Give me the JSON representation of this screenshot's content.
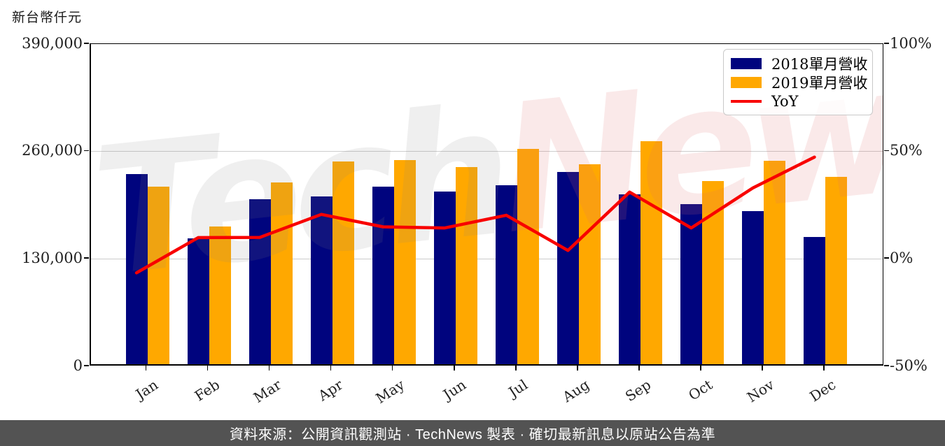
{
  "title": "新台幣仟元",
  "watermark": {
    "part1": "Tech",
    "part2": "News",
    "color1": "rgba(128,128,128,0.13)",
    "color2": "rgba(224,106,106,0.15)"
  },
  "legend": {
    "items": [
      {
        "label": "2018單月營收",
        "swatch": "box",
        "color": "#00047E"
      },
      {
        "label": "2019單月營收",
        "swatch": "box",
        "color": "#FFA800"
      },
      {
        "label": "YoY",
        "swatch": "line",
        "color": "#F80000"
      }
    ]
  },
  "footer": {
    "text": "資料來源：公開資訊觀測站 · TechNews 製表 · 確切最新訊息以原站公告為準"
  },
  "chart_data": {
    "type": "bar",
    "subtype": "grouped bars + line overlay (dual axis)",
    "categories": [
      "Jan",
      "Feb",
      "Mar",
      "Apr",
      "May",
      "Jun",
      "Jul",
      "Aug",
      "Sep",
      "Oct",
      "Nov",
      "Dec"
    ],
    "series": [
      {
        "name": "2018單月營收",
        "type": "bar",
        "axis": "left",
        "color": "#00047E",
        "values": [
          230000,
          152000,
          200000,
          203000,
          215000,
          209000,
          217000,
          233000,
          206000,
          194000,
          185000,
          154000
        ]
      },
      {
        "name": "2019單月營收",
        "type": "bar",
        "axis": "left",
        "color": "#FFA800",
        "values": [
          215000,
          167000,
          220000,
          245000,
          247000,
          239000,
          261000,
          242000,
          270000,
          222000,
          246000,
          227000
        ]
      },
      {
        "name": "YoY",
        "type": "line",
        "axis": "right",
        "color": "#F80000",
        "values": [
          -6.5,
          9.9,
          10.0,
          20.7,
          14.9,
          14.4,
          20.3,
          3.9,
          31.1,
          14.4,
          33.0,
          47.4
        ]
      }
    ],
    "title": "新台幣仟元",
    "xlabel": "",
    "ylabel_left": "新台幣仟元",
    "ylabel_right": "%",
    "left_axis": {
      "min": 0,
      "max": 390000,
      "ticks": [
        {
          "value": 390000,
          "label": "390,000"
        },
        {
          "value": 260000,
          "label": "260,000"
        },
        {
          "value": 130000,
          "label": "130,000"
        },
        {
          "value": 0,
          "label": "0"
        }
      ]
    },
    "right_axis": {
      "min": -50,
      "max": 100,
      "ticks": [
        {
          "value": 100,
          "label": "100%"
        },
        {
          "value": 50,
          "label": "50%"
        },
        {
          "value": 0,
          "label": "0%"
        },
        {
          "value": -50,
          "label": "-50%"
        }
      ]
    },
    "grid": {
      "horizontal_at": [
        260000,
        130000
      ],
      "color": "#cccccc"
    },
    "legend_position": "upper right"
  }
}
